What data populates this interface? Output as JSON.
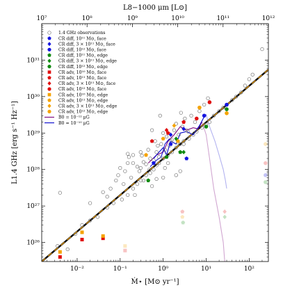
{
  "chart_data": {
    "type": "scatter",
    "xlabel": "Ṁ⋆ [M⊙ yr⁻¹]",
    "ylabel": "L1.4 GHz [erg s⁻¹ Hz⁻¹]",
    "top_xlabel": "L8−1000 μm [L⊙]",
    "x_scale": "log",
    "y_scale": "log",
    "xlim": [
      0.0015,
      280
    ],
    "ylim": [
      3e+25,
      1e+32
    ],
    "top_xlim": [
      10000000.0,
      1000000000000.0
    ],
    "x_ticks": [
      {
        "value": 0.01,
        "label": "10⁻²"
      },
      {
        "value": 0.1,
        "label": "10⁻¹"
      },
      {
        "value": 1,
        "label": "10⁰"
      },
      {
        "value": 10,
        "label": "10¹"
      },
      {
        "value": 100,
        "label": "10²"
      }
    ],
    "y_ticks": [
      {
        "value": 1e+26,
        "label": "10²⁶"
      },
      {
        "value": 1e+27,
        "label": "10²⁷"
      },
      {
        "value": 1e+28,
        "label": "10²⁸"
      },
      {
        "value": 1e+29,
        "label": "10²⁹"
      },
      {
        "value": 1e+30,
        "label": "10³⁰"
      },
      {
        "value": 1e+31,
        "label": "10³¹"
      }
    ],
    "top_ticks": [
      {
        "value": 10000000.0,
        "label": "10⁷"
      },
      {
        "value": 100000000.0,
        "label": "10⁸"
      },
      {
        "value": 1000000000.0,
        "label": "10⁹"
      },
      {
        "value": 10000000000.0,
        "label": "10¹⁰"
      },
      {
        "value": 100000000000.0,
        "label": "10¹¹"
      },
      {
        "value": 1000000000000.0,
        "label": "10¹²"
      }
    ],
    "relation_line": {
      "x": [
        0.0015,
        280
      ],
      "y": [
        3e+25,
        5.5e+30
      ]
    },
    "legend": {
      "placement": "upper-left",
      "entries": [
        {
          "label": "1.4 GHz observations",
          "marker": "circle-open",
          "color": "#777777"
        },
        {
          "label": "CR diff, 10¹¹ M⊙, face",
          "marker": "pentagon",
          "color": "#1515e0"
        },
        {
          "label": "CR diff, 3 × 10¹¹ M⊙, face",
          "marker": "diamond",
          "color": "#1515e0"
        },
        {
          "label": "CR diff, 10¹² M⊙, face",
          "marker": "circle",
          "color": "#1515e0"
        },
        {
          "label": "CR diff, 10¹¹ M⊙, edge",
          "marker": "pentagon",
          "color": "#118a11"
        },
        {
          "label": "CR diff, 3 × 10¹¹ M⊙, edge",
          "marker": "diamond",
          "color": "#118a11"
        },
        {
          "label": "CR diff, 10¹² M⊙, edge",
          "marker": "circle",
          "color": "#118a11"
        },
        {
          "label": "CR adv, 10¹⁰ M⊙, face",
          "marker": "square",
          "color": "#e01010"
        },
        {
          "label": "CR adv, 10¹¹ M⊙, face",
          "marker": "pentagon",
          "color": "#e01010"
        },
        {
          "label": "CR adv, 3 × 10¹¹ M⊙, face",
          "marker": "diamond",
          "color": "#e01010"
        },
        {
          "label": "CR adv, 10¹² M⊙, face",
          "marker": "circle",
          "color": "#e01010"
        },
        {
          "label": "CR adv, 10¹⁰ M⊙, edge",
          "marker": "square",
          "color": "#f5a300"
        },
        {
          "label": "CR adv, 10¹¹ M⊙, edge",
          "marker": "pentagon",
          "color": "#f5a300"
        },
        {
          "label": "CR adv, 3 × 10¹¹ M⊙, edge",
          "marker": "diamond",
          "color": "#f5a300"
        },
        {
          "label": "CR adv, 10¹² M⊙, edge",
          "marker": "circle",
          "color": "#f5a300"
        },
        {
          "label": "B0 = 10⁻¹² μG",
          "marker": "line",
          "color": "#7a007a"
        },
        {
          "label": "B0 = 10⁻¹⁰ μG",
          "marker": "line",
          "color": "#0000cc"
        }
      ]
    },
    "observations": [
      [
        0.0035,
        8e+25
      ],
      [
        0.006,
        6.5e+25
      ],
      [
        0.009,
        1.7e+26
      ],
      [
        0.013,
        3e+26
      ],
      [
        0.02,
        4e+26
      ],
      [
        0.03,
        5e+26
      ],
      [
        0.05,
        9e+26
      ],
      [
        0.07,
        1.2e+27
      ],
      [
        0.11,
        1.5e+27
      ],
      [
        0.15,
        2e+27
      ],
      [
        0.2,
        3e+27
      ],
      [
        0.25,
        4e+27
      ],
      [
        0.3,
        5e+27
      ],
      [
        0.4,
        7e+27
      ],
      [
        0.5,
        8e+27
      ],
      [
        0.6,
        1e+28
      ],
      [
        0.7,
        1.3e+28
      ],
      [
        0.8,
        1.5e+28
      ],
      [
        1.0,
        2e+28
      ],
      [
        1.3,
        2.5e+28
      ],
      [
        1.6,
        3e+28
      ],
      [
        2.0,
        4e+28
      ],
      [
        2.5,
        5e+28
      ],
      [
        3.0,
        6e+28
      ],
      [
        4.0,
        7e+28
      ],
      [
        5.0,
        9e+28
      ],
      [
        6.0,
        1.1e+29
      ],
      [
        8.0,
        1.4e+29
      ],
      [
        10,
        1.7e+29
      ],
      [
        12,
        2e+29
      ],
      [
        15,
        3e+29
      ],
      [
        20,
        4e+29
      ],
      [
        25,
        5e+29
      ],
      [
        30,
        6e+29
      ],
      [
        40,
        8e+29
      ],
      [
        50,
        1e+30
      ],
      [
        65,
        1.3e+30
      ],
      [
        80,
        2e+30
      ],
      [
        100,
        3e+30
      ],
      [
        120,
        4e+30
      ],
      [
        200,
        2e+31
      ],
      [
        0.004,
        2.3e+27
      ],
      [
        0.05,
        1.8e+27
      ],
      [
        0.08,
        5e+27
      ],
      [
        0.1,
        1.1e+28
      ],
      [
        0.15,
        1.5e+28
      ],
      [
        0.2,
        2.5e+28
      ],
      [
        0.25,
        1.2e+28
      ],
      [
        0.3,
        3e+28
      ],
      [
        0.35,
        1.6e+28
      ],
      [
        0.45,
        3.5e+28
      ],
      [
        0.5,
        2e+28
      ],
      [
        0.55,
        1.2e+29
      ],
      [
        0.65,
        6e+28
      ],
      [
        0.7,
        3e+28
      ],
      [
        0.9,
        5e+28
      ],
      [
        1.0,
        1e+29
      ],
      [
        1.2,
        8e+28
      ],
      [
        1.5,
        6e+28
      ],
      [
        1.8,
        1.2e+29
      ],
      [
        2.0,
        1.8e+29
      ],
      [
        2.3,
        9e+28
      ],
      [
        2.8,
        1.5e+29
      ],
      [
        3.2,
        2.5e+29
      ],
      [
        3.5,
        1.2e+29
      ],
      [
        4.5,
        3e+29
      ],
      [
        5.5,
        2e+29
      ],
      [
        7.0,
        4e+29
      ],
      [
        9.0,
        6e+29
      ],
      [
        11,
        9e+29
      ],
      [
        0.12,
        4e+27
      ],
      [
        0.18,
        6e+27
      ],
      [
        0.22,
        2e+27
      ],
      [
        0.28,
        9e+27
      ],
      [
        0.35,
        5e+27
      ],
      [
        0.4,
        1.4e+28
      ],
      [
        0.6,
        1.8e+28
      ],
      [
        0.8,
        2.2e+28
      ],
      [
        1.1,
        3.5e+28
      ],
      [
        1.4,
        4.5e+28
      ],
      [
        0.06,
        3e+27
      ],
      [
        0.09,
        7e+27
      ],
      [
        0.13,
        9e+27
      ],
      [
        0.16,
        2.2e+28
      ],
      [
        0.32,
        2.4e+28
      ],
      [
        0.48,
        1e+28
      ],
      [
        0.75,
        4.5e+28
      ],
      [
        1.6,
        6.5e+28
      ],
      [
        2.2,
        5.5e+28
      ],
      [
        3.8,
        1.1e+29
      ],
      [
        0.85,
        3e+29
      ],
      [
        2.6,
        3.6e+29
      ],
      [
        3.0,
        5e+28
      ],
      [
        0.02,
        1.2e+27
      ],
      [
        0.04,
        2.4e+27
      ],
      [
        0.15,
        2.7e+28
      ],
      [
        0.2,
        1.5e+28
      ],
      [
        0.3,
        1.1e+28
      ],
      [
        0.55,
        3.5e+27
      ],
      [
        0.7,
        5.5e+27
      ],
      [
        1.1,
        1.1e+28
      ],
      [
        1.3,
        1.5e+28
      ],
      [
        2.0,
        7e+27
      ],
      [
        2.5,
        9e+27
      ],
      [
        1.0,
        6e+27
      ]
    ],
    "simulations": [
      {
        "marker": "square",
        "color": "#e01010",
        "alpha": 1.0,
        "points": [
          [
            0.004,
            4e+25
          ],
          [
            0.013,
            1.2e+26
          ],
          [
            0.04,
            1.3e+26
          ]
        ]
      },
      {
        "marker": "square",
        "color": "#f5a300",
        "alpha": 1.0,
        "points": [
          [
            0.004,
            5.5e+25
          ],
          [
            0.013,
            1.9e+26
          ],
          [
            0.04,
            1.5e+26
          ]
        ]
      },
      {
        "marker": "square",
        "color": "#e01010",
        "alpha": 0.25,
        "points": [
          [
            0.13,
            6e+25
          ]
        ]
      },
      {
        "marker": "square",
        "color": "#f5a300",
        "alpha": 0.25,
        "points": [
          [
            0.13,
            8e+25
          ]
        ]
      },
      {
        "marker": "pentagon",
        "color": "#1515e0",
        "alpha": 1.0,
        "points": [
          [
            0.6,
            1.5e+28
          ],
          [
            1.5,
            5e+28
          ],
          [
            3.5,
            2e+28
          ]
        ]
      },
      {
        "marker": "pentagon",
        "color": "#118a11",
        "alpha": 1.0,
        "points": [
          [
            0.45,
            5e+27
          ],
          [
            1.2,
            2.2e+28
          ],
          [
            2.5,
            3e+28
          ]
        ]
      },
      {
        "marker": "pentagon",
        "color": "#e01010",
        "alpha": 1.0,
        "points": [
          [
            0.55,
            6e+28
          ],
          [
            1.3,
            1e+29
          ],
          [
            3.0,
            2e+29
          ]
        ]
      },
      {
        "marker": "pentagon",
        "color": "#f5a300",
        "alpha": 1.0,
        "points": [
          [
            0.4,
            2.5e+28
          ],
          [
            1.0,
            7e+28
          ],
          [
            2.2,
            6e+28
          ]
        ]
      },
      {
        "marker": "diamond",
        "color": "#1515e0",
        "alpha": 1.0,
        "points": [
          [
            1.5,
            9e+28
          ],
          [
            3.0,
            1.3e+29
          ]
        ]
      },
      {
        "marker": "diamond",
        "color": "#118a11",
        "alpha": 1.0,
        "points": [
          [
            2.0,
            7e+28
          ],
          [
            3.0,
            3e+28
          ]
        ]
      },
      {
        "marker": "diamond",
        "color": "#e01010",
        "alpha": 1.0,
        "points": [
          [
            1.2,
            1.2e+29
          ]
        ]
      },
      {
        "marker": "diamond",
        "color": "#f5a300",
        "alpha": 1.0,
        "points": [
          [
            1.8,
            1.6e+29
          ]
        ]
      },
      {
        "marker": "circle",
        "color": "#1515e0",
        "alpha": 1.0,
        "points": [
          [
            9.0,
            3e+29
          ],
          [
            30,
            6e+29
          ]
        ]
      },
      {
        "marker": "circle",
        "color": "#118a11",
        "alpha": 1.0,
        "points": [
          [
            10,
            1.5e+29
          ],
          [
            30,
            4.5e+29
          ]
        ]
      },
      {
        "marker": "circle",
        "color": "#e01010",
        "alpha": 1.0,
        "points": [
          [
            6.0,
            2.5e+29
          ],
          [
            12,
            7e+29
          ]
        ]
      },
      {
        "marker": "circle",
        "color": "#f5a300",
        "alpha": 1.0,
        "points": [
          [
            7.0,
            5e+29
          ],
          [
            30,
            3.5e+29
          ]
        ]
      },
      {
        "marker": "circle",
        "color": "#f5a300",
        "alpha": 0.25,
        "points": [
          [
            240,
            5e+28
          ]
        ]
      },
      {
        "marker": "circle",
        "color": "#e01010",
        "alpha": 0.25,
        "points": [
          [
            240,
            1.5e+28
          ]
        ]
      },
      {
        "marker": "circle",
        "color": "#1515e0",
        "alpha": 0.25,
        "points": [
          [
            240,
            7e+27
          ]
        ]
      },
      {
        "marker": "circle",
        "color": "#118a11",
        "alpha": 0.25,
        "points": [
          [
            240,
            4.5e+27
          ]
        ]
      },
      {
        "marker": "pentagon",
        "color": "#e01010",
        "alpha": 0.25,
        "points": [
          [
            2.8,
            7e+26
          ]
        ]
      },
      {
        "marker": "pentagon",
        "color": "#f5a300",
        "alpha": 0.25,
        "points": [
          [
            2.8,
            5e+26
          ]
        ]
      },
      {
        "marker": "pentagon",
        "color": "#118a11",
        "alpha": 0.25,
        "points": [
          [
            2.9,
            3.5e+26
          ]
        ]
      },
      {
        "marker": "diamond",
        "color": "#118a11",
        "alpha": 0.25,
        "points": [
          [
            27,
            5e+26
          ]
        ]
      },
      {
        "marker": "diamond",
        "color": "#e01010",
        "alpha": 0.25,
        "points": [
          [
            27,
            7e+26
          ]
        ]
      }
    ],
    "tracks": [
      {
        "color": "#7a007a",
        "alpha": 1.0,
        "points": [
          [
            0.45,
            1.5e+28
          ],
          [
            0.7,
            2.5e+28
          ],
          [
            1.0,
            3e+28
          ],
          [
            1.3,
            6e+28
          ],
          [
            1.8,
            9e+28
          ],
          [
            2.5,
            1.5e+29
          ],
          [
            3.5,
            1.2e+29
          ],
          [
            5.0,
            1.4e+29
          ],
          [
            6.5,
            1.3e+29
          ],
          [
            8.0,
            2e+29
          ]
        ]
      },
      {
        "color": "#7a007a",
        "alpha": 0.35,
        "points": [
          [
            8.0,
            2e+29
          ],
          [
            10,
            9e+28
          ],
          [
            12,
            2e+28
          ],
          [
            15,
            3e+27
          ],
          [
            20,
            5e+26
          ],
          [
            25,
            1e+26
          ],
          [
            27,
            3e+25
          ]
        ]
      },
      {
        "color": "#0000cc",
        "alpha": 1.0,
        "points": [
          [
            0.6,
            2e+28
          ],
          [
            0.8,
            3e+28
          ],
          [
            1.0,
            4e+28
          ],
          [
            1.2,
            2.5e+28
          ],
          [
            1.5,
            6e+28
          ],
          [
            2.0,
            5e+28
          ],
          [
            2.5,
            1e+29
          ],
          [
            3.5,
            1.1e+29
          ],
          [
            5.0,
            9e+28
          ],
          [
            7.0,
            1.6e+29
          ],
          [
            9.0,
            2.8e+29
          ],
          [
            10,
            3.2e+29
          ]
        ]
      },
      {
        "color": "#0000cc",
        "alpha": 0.3,
        "points": [
          [
            10,
            3.2e+29
          ],
          [
            12,
            1.5e+29
          ],
          [
            16,
            6e+28
          ],
          [
            20,
            2.5e+28
          ],
          [
            25,
            1e+28
          ],
          [
            28,
            5e+27
          ],
          [
            30,
            3e+27
          ]
        ]
      },
      {
        "color": "#0000cc",
        "alpha": 0.9,
        "points": [
          [
            0.5,
            1.2e+28
          ],
          [
            0.7,
            1.8e+28
          ],
          [
            0.9,
            2.2e+28
          ],
          [
            1.1,
            5e+28
          ],
          [
            1.4,
            7e+28
          ]
        ]
      }
    ]
  }
}
